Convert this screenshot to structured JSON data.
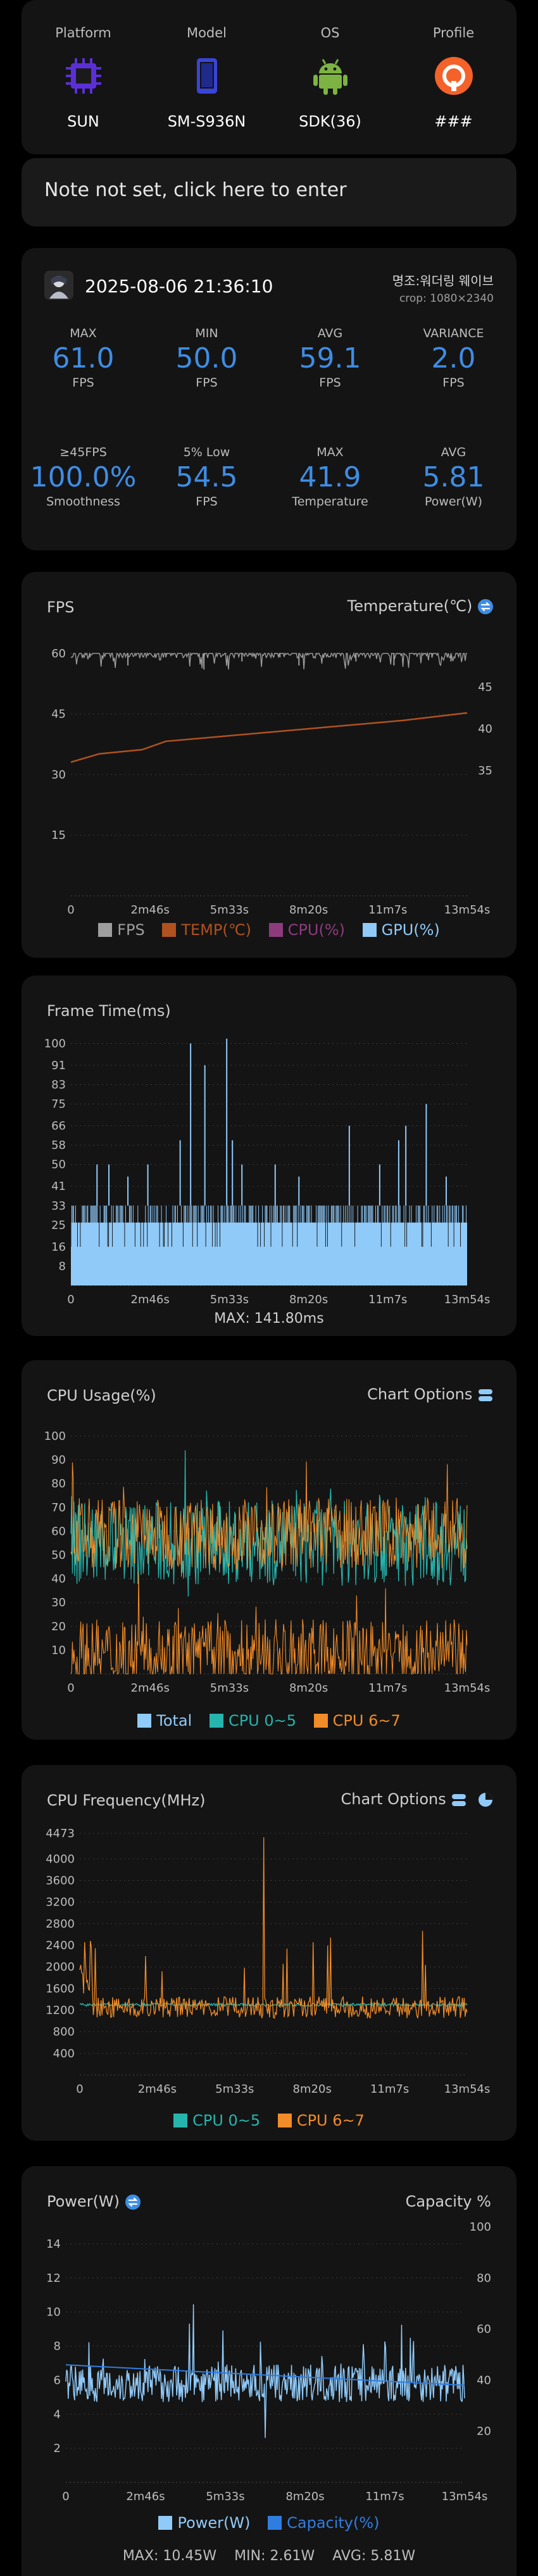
{
  "device": {
    "items": [
      {
        "label": "Platform",
        "value": "SUN",
        "icon": "chip-icon"
      },
      {
        "label": "Model",
        "value": "SM-S936N",
        "icon": "phone-icon"
      },
      {
        "label": "OS",
        "value": "SDK(36)",
        "icon": "android-icon"
      },
      {
        "label": "Profile",
        "value": "###",
        "icon": "profile-icon"
      }
    ]
  },
  "note": {
    "text": "Note not set, click here to enter"
  },
  "session": {
    "datetime": "2025-08-06 21:36:10",
    "app_name": "명조:워더링 웨이브",
    "crop": "crop: 1080×2340",
    "stats_row1": [
      {
        "label": "MAX",
        "value": "61.0",
        "unit": "FPS"
      },
      {
        "label": "MIN",
        "value": "50.0",
        "unit": "FPS"
      },
      {
        "label": "AVG",
        "value": "59.1",
        "unit": "FPS"
      },
      {
        "label": "VARIANCE",
        "value": "2.0",
        "unit": "FPS"
      }
    ],
    "stats_row2": [
      {
        "label": "≥45FPS",
        "value": "100.0%",
        "unit": "Smoothness"
      },
      {
        "label": "5% Low",
        "value": "54.5",
        "unit": "FPS"
      },
      {
        "label": "MAX",
        "value": "41.9",
        "unit": "Temperature"
      },
      {
        "label": "AVG",
        "value": "5.81",
        "unit": "Power(W)"
      }
    ]
  },
  "charts": {
    "fps": {
      "title": "FPS",
      "right_title": "Temperature(℃)",
      "legend": [
        {
          "label": "FPS",
          "color": "#9e9e9e"
        },
        {
          "label": "TEMP(℃)",
          "color": "#b0521f"
        },
        {
          "label": "CPU(%)",
          "color": "#8e3b7e"
        },
        {
          "label": "GPU(%)",
          "color": "#90caf9"
        }
      ]
    },
    "frametime": {
      "title": "Frame Time(ms)",
      "max_text": "MAX: 141.80ms"
    },
    "cpu_usage": {
      "title": "CPU Usage(%)",
      "options_label": "Chart Options",
      "legend": [
        {
          "label": "Total",
          "color": "#90caf9"
        },
        {
          "label": "CPU 0~5",
          "color": "#26b5ad"
        },
        {
          "label": "CPU 6~7",
          "color": "#f28c28"
        }
      ]
    },
    "cpu_freq": {
      "title": "CPU Frequency(MHz)",
      "options_label": "Chart Options",
      "legend": [
        {
          "label": "CPU 0~5",
          "color": "#26b5ad"
        },
        {
          "label": "CPU 6~7",
          "color": "#f28c28"
        }
      ]
    },
    "power": {
      "title": "Power(W)",
      "right_title": "Capacity %",
      "legend": [
        {
          "label": "Power(W)",
          "color": "#90caf9"
        },
        {
          "label": "Capacity(%)",
          "color": "#2f7de0"
        }
      ],
      "summary": {
        "max": "MAX: 10.45W",
        "min": "MIN: 2.61W",
        "avg": "AVG: 5.81W"
      }
    }
  },
  "chart_data": [
    {
      "type": "line",
      "title": "FPS",
      "x_ticks": [
        "0",
        "2m46s",
        "5m33s",
        "8m20s",
        "11m7s",
        "13m54s"
      ],
      "y_ticks": [
        15,
        30,
        45,
        60
      ],
      "y2_ticks": [
        35,
        40,
        45
      ],
      "ylim": [
        0,
        62
      ],
      "y2lim": [
        20,
        50
      ],
      "duration_s": 834,
      "series": [
        {
          "name": "FPS",
          "x": [
            0,
            40,
            80,
            120,
            160,
            200,
            240,
            280,
            320,
            360,
            400,
            440,
            480,
            520,
            560,
            600,
            640,
            680,
            720,
            760,
            800,
            834
          ],
          "values": [
            60,
            59,
            60,
            57,
            60,
            59,
            60,
            56,
            60,
            58,
            60,
            59,
            57,
            60,
            60,
            58,
            60,
            57,
            60,
            59,
            58,
            60
          ]
        },
        {
          "name": "TEMP(℃)",
          "x": [
            0,
            60,
            150,
            200,
            300,
            400,
            500,
            600,
            700,
            834
          ],
          "values": [
            36,
            37,
            37.5,
            38.5,
            39,
            39.5,
            40,
            40.5,
            41,
            41.9
          ]
        }
      ]
    },
    {
      "type": "bar",
      "title": "Frame Time(ms)",
      "x_ticks": [
        "0",
        "2m46s",
        "5m33s",
        "8m20s",
        "11m7s",
        "13m54s"
      ],
      "y_ticks": [
        8,
        16,
        25,
        33,
        41,
        50,
        58,
        66,
        75,
        83,
        91,
        100
      ],
      "ylim": [
        0,
        103
      ],
      "baseline_ms": 33,
      "spikes": [
        {
          "x": 55,
          "y": 50
        },
        {
          "x": 80,
          "y": 50
        },
        {
          "x": 120,
          "y": 45
        },
        {
          "x": 162,
          "y": 50
        },
        {
          "x": 230,
          "y": 60
        },
        {
          "x": 252,
          "y": 100
        },
        {
          "x": 282,
          "y": 91
        },
        {
          "x": 328,
          "y": 102
        },
        {
          "x": 340,
          "y": 60
        },
        {
          "x": 360,
          "y": 50
        },
        {
          "x": 430,
          "y": 50
        },
        {
          "x": 480,
          "y": 45
        },
        {
          "x": 586,
          "y": 66
        },
        {
          "x": 650,
          "y": 50
        },
        {
          "x": 690,
          "y": 60
        },
        {
          "x": 705,
          "y": 66
        },
        {
          "x": 748,
          "y": 75
        },
        {
          "x": 790,
          "y": 45
        }
      ]
    },
    {
      "type": "line",
      "title": "CPU Usage(%)",
      "x_ticks": [
        "0",
        "2m46s",
        "5m33s",
        "8m20s",
        "11m7s",
        "13m54s"
      ],
      "y_ticks": [
        10,
        20,
        30,
        40,
        50,
        60,
        70,
        80,
        90,
        100
      ],
      "ylim": [
        0,
        100
      ],
      "series": [
        {
          "name": "CPU 0~5",
          "range": [
            30,
            95
          ],
          "mean": 55
        },
        {
          "name": "CPU 6~7",
          "range": [
            0,
            90
          ],
          "mean": 25
        }
      ]
    },
    {
      "type": "line",
      "title": "CPU Frequency(MHz)",
      "x_ticks": [
        "0",
        "2m46s",
        "5m33s",
        "8m20s",
        "11m7s",
        "13m54s"
      ],
      "y_ticks": [
        400,
        800,
        1200,
        1600,
        2000,
        2400,
        2800,
        3200,
        3600,
        4000,
        4473
      ],
      "ylim": [
        0,
        4473
      ],
      "series": [
        {
          "name": "CPU 0~5",
          "mean": 1300
        },
        {
          "name": "CPU 6~7",
          "range": [
            1000,
            4400
          ],
          "mean": 1250
        }
      ]
    },
    {
      "type": "line",
      "title": "Power(W)",
      "x_ticks": [
        "0",
        "2m46s",
        "5m33s",
        "8m20s",
        "11m7s",
        "13m54s"
      ],
      "y_ticks": [
        2,
        4,
        6,
        8,
        10,
        12,
        14
      ],
      "y2_ticks": [
        20,
        40,
        60,
        80,
        100
      ],
      "ylim": [
        0,
        15
      ],
      "y2lim": [
        0,
        100
      ],
      "series": [
        {
          "name": "Power(W)",
          "max": 10.45,
          "min": 2.61,
          "avg": 5.81
        },
        {
          "name": "Capacity(%)",
          "x": [
            0,
            834
          ],
          "values": [
            46,
            38
          ]
        }
      ]
    }
  ]
}
